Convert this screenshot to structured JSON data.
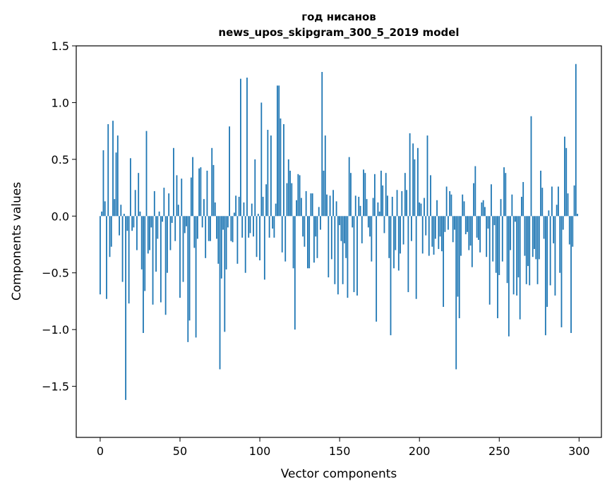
{
  "chart_data": {
    "type": "bar",
    "title_line1": "год нисанов",
    "title_line2": "news_upos_skipgram_300_5_2019 model",
    "xlabel": "Vector components",
    "ylabel": "Components values",
    "xlim": [
      -15,
      314
    ],
    "ylim": [
      -1.95,
      1.5
    ],
    "xticks": [
      0,
      50,
      100,
      150,
      200,
      250,
      300
    ],
    "xtick_labels": [
      "0",
      "50",
      "100",
      "150",
      "200",
      "250",
      "300"
    ],
    "yticks": [
      -1.5,
      -1.0,
      -0.5,
      0.0,
      0.5,
      1.0,
      1.5
    ],
    "ytick_labels": [
      "−1.5",
      "−1.0",
      "−0.5",
      "0.0",
      "0.5",
      "1.0",
      "1.5"
    ],
    "bar_color": "#1f77b4",
    "values": [
      -0.69,
      0.04,
      0.58,
      0.13,
      -0.73,
      0.81,
      -0.36,
      -0.27,
      0.84,
      0.15,
      0.56,
      0.71,
      -0.17,
      0.1,
      -0.58,
      0.02,
      -1.62,
      -0.13,
      -0.77,
      0.51,
      -0.13,
      -0.1,
      0.23,
      -0.3,
      0.38,
      0.04,
      -0.47,
      -1.03,
      -0.66,
      0.75,
      -0.33,
      -0.3,
      -0.1,
      -0.78,
      0.22,
      -0.49,
      -0.2,
      0.04,
      -0.76,
      -0.05,
      0.25,
      -0.87,
      -0.5,
      0.2,
      -0.3,
      -0.06,
      0.6,
      -0.22,
      0.36,
      0.1,
      -0.72,
      0.33,
      -0.58,
      -0.15,
      -0.09,
      -1.11,
      -0.92,
      0.34,
      0.52,
      -0.28,
      -1.07,
      -0.2,
      0.42,
      0.43,
      -0.1,
      0.15,
      -0.37,
      0.4,
      -0.22,
      -0.22,
      0.6,
      0.45,
      0.12,
      -0.2,
      -0.42,
      -1.35,
      -0.55,
      -0.12,
      -1.02,
      -0.47,
      -0.1,
      0.79,
      -0.22,
      -0.23,
      0.03,
      0.18,
      -0.42,
      0.17,
      1.21,
      -0.19,
      0.12,
      -0.5,
      1.22,
      -0.19,
      -0.15,
      0.11,
      -0.18,
      0.5,
      -0.36,
      0.02,
      -0.39,
      1.0,
      0.17,
      -0.56,
      0.28,
      0.76,
      -0.19,
      0.71,
      -0.11,
      -0.19,
      0.11,
      1.15,
      1.15,
      0.86,
      -0.32,
      0.81,
      -0.4,
      0.29,
      0.5,
      0.4,
      0.29,
      -0.46,
      -1.0,
      0.14,
      0.37,
      0.36,
      0.16,
      -0.18,
      -0.27,
      0.22,
      -0.46,
      -0.46,
      0.2,
      0.2,
      -0.41,
      -0.18,
      -0.37,
      0.08,
      -0.12,
      1.27,
      0.4,
      0.71,
      0.19,
      -0.54,
      0.18,
      -0.38,
      0.23,
      -0.6,
      0.13,
      -0.69,
      -0.08,
      -0.22,
      -0.6,
      -0.24,
      -0.37,
      -0.72,
      0.52,
      0.38,
      -0.1,
      -0.67,
      0.18,
      -0.7,
      0.17,
      0.09,
      -0.24,
      0.41,
      0.38,
      0.15,
      -0.1,
      -0.18,
      -0.4,
      0.16,
      0.37,
      -0.93,
      0.12,
      0.04,
      0.4,
      0.27,
      -0.15,
      0.38,
      0.18,
      -0.37,
      -1.05,
      0.17,
      -0.46,
      -0.3,
      0.23,
      -0.48,
      -0.33,
      0.22,
      -0.25,
      0.38,
      0.23,
      -0.67,
      0.73,
      -0.22,
      0.64,
      0.5,
      -0.73,
      0.6,
      0.12,
      0.11,
      -0.33,
      0.16,
      -0.17,
      0.71,
      -0.35,
      0.36,
      -0.27,
      -0.34,
      -0.2,
      0.14,
      -0.29,
      -0.18,
      -0.31,
      -0.8,
      -0.14,
      0.26,
      -0.12,
      0.22,
      0.19,
      -0.23,
      -0.12,
      -1.35,
      -0.71,
      -0.9,
      -0.35,
      0.19,
      0.13,
      -0.16,
      -0.14,
      -0.3,
      -0.26,
      -0.45,
      0.29,
      0.44,
      -0.19,
      -0.21,
      -0.32,
      0.12,
      0.14,
      0.08,
      -0.36,
      -0.11,
      -0.78,
      0.28,
      -0.4,
      -0.08,
      -0.5,
      -0.9,
      -0.52,
      0.15,
      -0.4,
      0.43,
      0.38,
      -0.59,
      -1.06,
      -0.3,
      0.19,
      -0.69,
      -0.05,
      -0.7,
      -0.54,
      -0.91,
      0.17,
      0.3,
      -0.35,
      -0.6,
      -0.44,
      -0.61,
      0.88,
      -0.36,
      -0.29,
      -0.38,
      -0.6,
      -0.38,
      0.4,
      0.25,
      -0.2,
      -1.05,
      -0.8,
      0.05,
      -0.61,
      0.26,
      -0.24,
      -0.7,
      0.1,
      0.26,
      -0.5,
      -0.98,
      -0.12,
      0.7,
      0.6,
      0.2,
      -0.25,
      -1.03,
      -0.27,
      0.27,
      1.34,
      0.02
    ]
  }
}
